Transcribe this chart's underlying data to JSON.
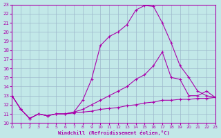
{
  "xlabel": "Windchill (Refroidissement éolien,°C)",
  "xlim": [
    0,
    23
  ],
  "ylim": [
    10,
    23
  ],
  "xticks": [
    0,
    1,
    2,
    3,
    4,
    5,
    6,
    7,
    8,
    9,
    10,
    11,
    12,
    13,
    14,
    15,
    16,
    17,
    18,
    19,
    20,
    21,
    22,
    23
  ],
  "yticks": [
    10,
    11,
    12,
    13,
    14,
    15,
    16,
    17,
    18,
    19,
    20,
    21,
    22,
    23
  ],
  "bg_color": "#c2e8e8",
  "grid_color": "#9db8cc",
  "line_color": "#aa00aa",
  "curve1_x": [
    0,
    1,
    2,
    3,
    4,
    5,
    6,
    7,
    8,
    9,
    10,
    11,
    12,
    13,
    14,
    15,
    16,
    17,
    18,
    19,
    20,
    21,
    22,
    23
  ],
  "curve1_y": [
    13.0,
    11.5,
    10.5,
    11.0,
    10.8,
    11.0,
    11.0,
    11.2,
    12.5,
    14.8,
    18.5,
    19.5,
    20.0,
    20.8,
    22.4,
    22.9,
    22.8,
    21.0,
    18.8,
    16.3,
    15.0,
    13.5,
    13.0,
    12.8
  ],
  "curve2_x": [
    0,
    1,
    2,
    3,
    4,
    5,
    6,
    7,
    8,
    9,
    10,
    11,
    12,
    13,
    14,
    15,
    16,
    17,
    18,
    19,
    20,
    21,
    22,
    23
  ],
  "curve2_y": [
    13.0,
    11.5,
    10.5,
    11.0,
    10.8,
    11.0,
    11.0,
    11.2,
    11.5,
    12.0,
    12.5,
    13.0,
    13.5,
    14.0,
    14.8,
    15.3,
    16.3,
    17.8,
    15.0,
    14.8,
    13.0,
    13.0,
    13.5,
    12.8
  ],
  "curve3_x": [
    0,
    1,
    2,
    3,
    4,
    5,
    6,
    7,
    8,
    9,
    10,
    11,
    12,
    13,
    14,
    15,
    16,
    17,
    18,
    19,
    20,
    21,
    22,
    23
  ],
  "curve3_y": [
    13.0,
    11.5,
    10.5,
    11.0,
    10.8,
    11.0,
    11.0,
    11.1,
    11.2,
    11.3,
    11.5,
    11.6,
    11.7,
    11.9,
    12.0,
    12.2,
    12.3,
    12.5,
    12.5,
    12.6,
    12.6,
    12.7,
    12.7,
    12.8
  ]
}
